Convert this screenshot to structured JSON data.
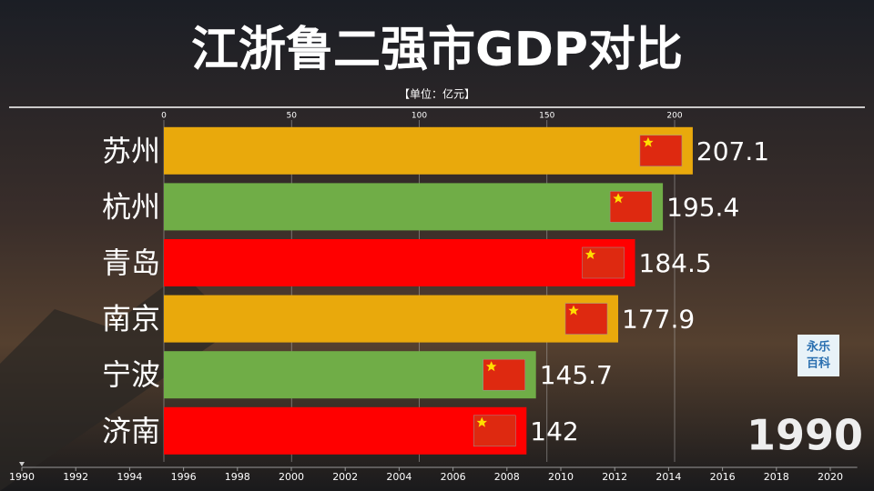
{
  "chart_data": {
    "type": "bar",
    "orientation": "horizontal",
    "title": "江浙鲁二强市GDP对比",
    "subtitle": "【单位：亿元】",
    "categories": [
      "苏州",
      "杭州",
      "青岛",
      "南京",
      "宁波",
      "济南"
    ],
    "values": [
      207.1,
      195.4,
      184.5,
      177.9,
      145.7,
      142
    ],
    "colors": [
      "#e9a90c",
      "#70ad47",
      "#ff0000",
      "#e9a90c",
      "#70ad47",
      "#ff0000"
    ],
    "xlim": [
      0,
      250
    ],
    "xticks": [
      0,
      50,
      100,
      150,
      200
    ],
    "grid": true,
    "current_year": 1990,
    "timeline": {
      "lim": [
        1990,
        2021
      ],
      "ticks": [
        1990,
        1992,
        1994,
        1996,
        1998,
        2000,
        2002,
        2004,
        2006,
        2008,
        2010,
        2012,
        2014,
        2016,
        2018,
        2020
      ]
    },
    "watermark": [
      "永乐",
      "百科"
    ]
  }
}
